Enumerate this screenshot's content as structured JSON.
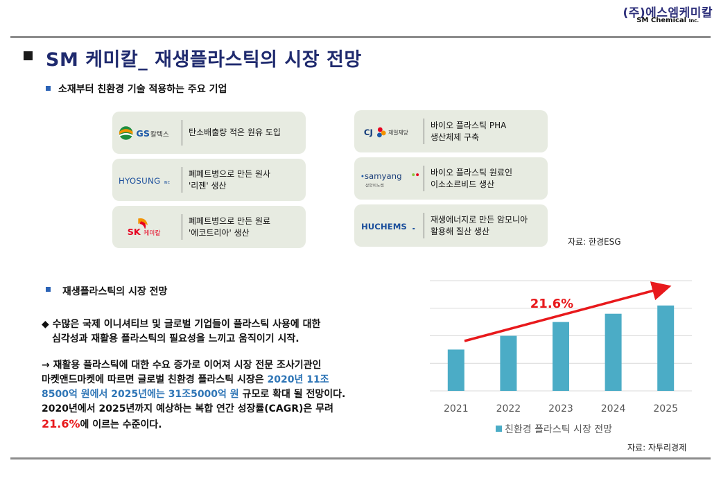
{
  "header": {
    "company_ko": "(주)에스엠케미칼",
    "company_en": "SM Chemical",
    "company_en_suffix": "Inc."
  },
  "title": "SM 케미칼_ 재생플라스틱의 시장 전망",
  "section1": {
    "heading": "소재부터 친환경 기술 적용하는 주요 기업",
    "cards": [
      {
        "logo": "GS 칼텍스",
        "line1": "탄소배출량 적은 원유 도입",
        "line2": ""
      },
      {
        "logo": "HYOSUNG",
        "line1": "폐페트병으로 만든 원사",
        "line2": "'리젠' 생산"
      },
      {
        "logo": "SK 케미칼",
        "line1": "폐페트병으로 만든 원료",
        "line2": "'에코트리아' 생산"
      },
      {
        "logo": "CJ 제일제당",
        "line1": "바이오 플라스틱 PHA",
        "line2": "생산체제 구축"
      },
      {
        "logo": "samyang",
        "line1": "바이오 플라스틱 원료인",
        "line2": "이소소르비드 생산"
      },
      {
        "logo": "HUCHEMS",
        "line1": "재생에너지로 만든 암모니아",
        "line2": "활용해 질산 생산"
      }
    ],
    "logo_extras": {
      "hyosung_suffix": "INC",
      "samyang_sub": "삼양이노켐"
    },
    "source": "자료: 한경ESG"
  },
  "section2": {
    "heading": "재생플라스틱의 시장 전망",
    "bullet": "수많은 국제 이니셔티브 및 글로벌 기업들이 플라스틱 사용에 대한",
    "bullet_cont": "심각성과 재활용 플라스틱의 필요성을 느끼고 움직이기 시작.",
    "para_intro": "→ 재활용 플라스틱에 대한 수요 증가로 이어져 시장 전문 조사기관인",
    "para_line2": "마켓앤드마켓에 따르면 글로벌 친환경 플라스틱 시장은 ",
    "para_hl1a": "2020년 11조",
    "para_hl1b": "8500억 원에서 2025년에는 31조5000억 원",
    "para_line3_rest": " 규모로 확대 될 전망이다.",
    "para_line4": "2020년에서 2025년까지 예상하는 복합 연간 성장률(CAGR)은 무려",
    "para_hl2": "21.6%",
    "para_line5_rest": "에 이르는 수준이다."
  },
  "chart_data": {
    "type": "bar",
    "categories": [
      "2021",
      "2022",
      "2023",
      "2024",
      "2025"
    ],
    "series": [
      {
        "name": "친환경 플라스틱 시장 전망",
        "values": [
          15,
          20,
          25,
          28,
          31
        ]
      }
    ],
    "ylim": [
      0,
      40
    ],
    "grid": true,
    "annotation": "21.6%",
    "legend_position": "bottom",
    "bar_color": "#4bacc6",
    "source": "자료: 자투리경제"
  }
}
